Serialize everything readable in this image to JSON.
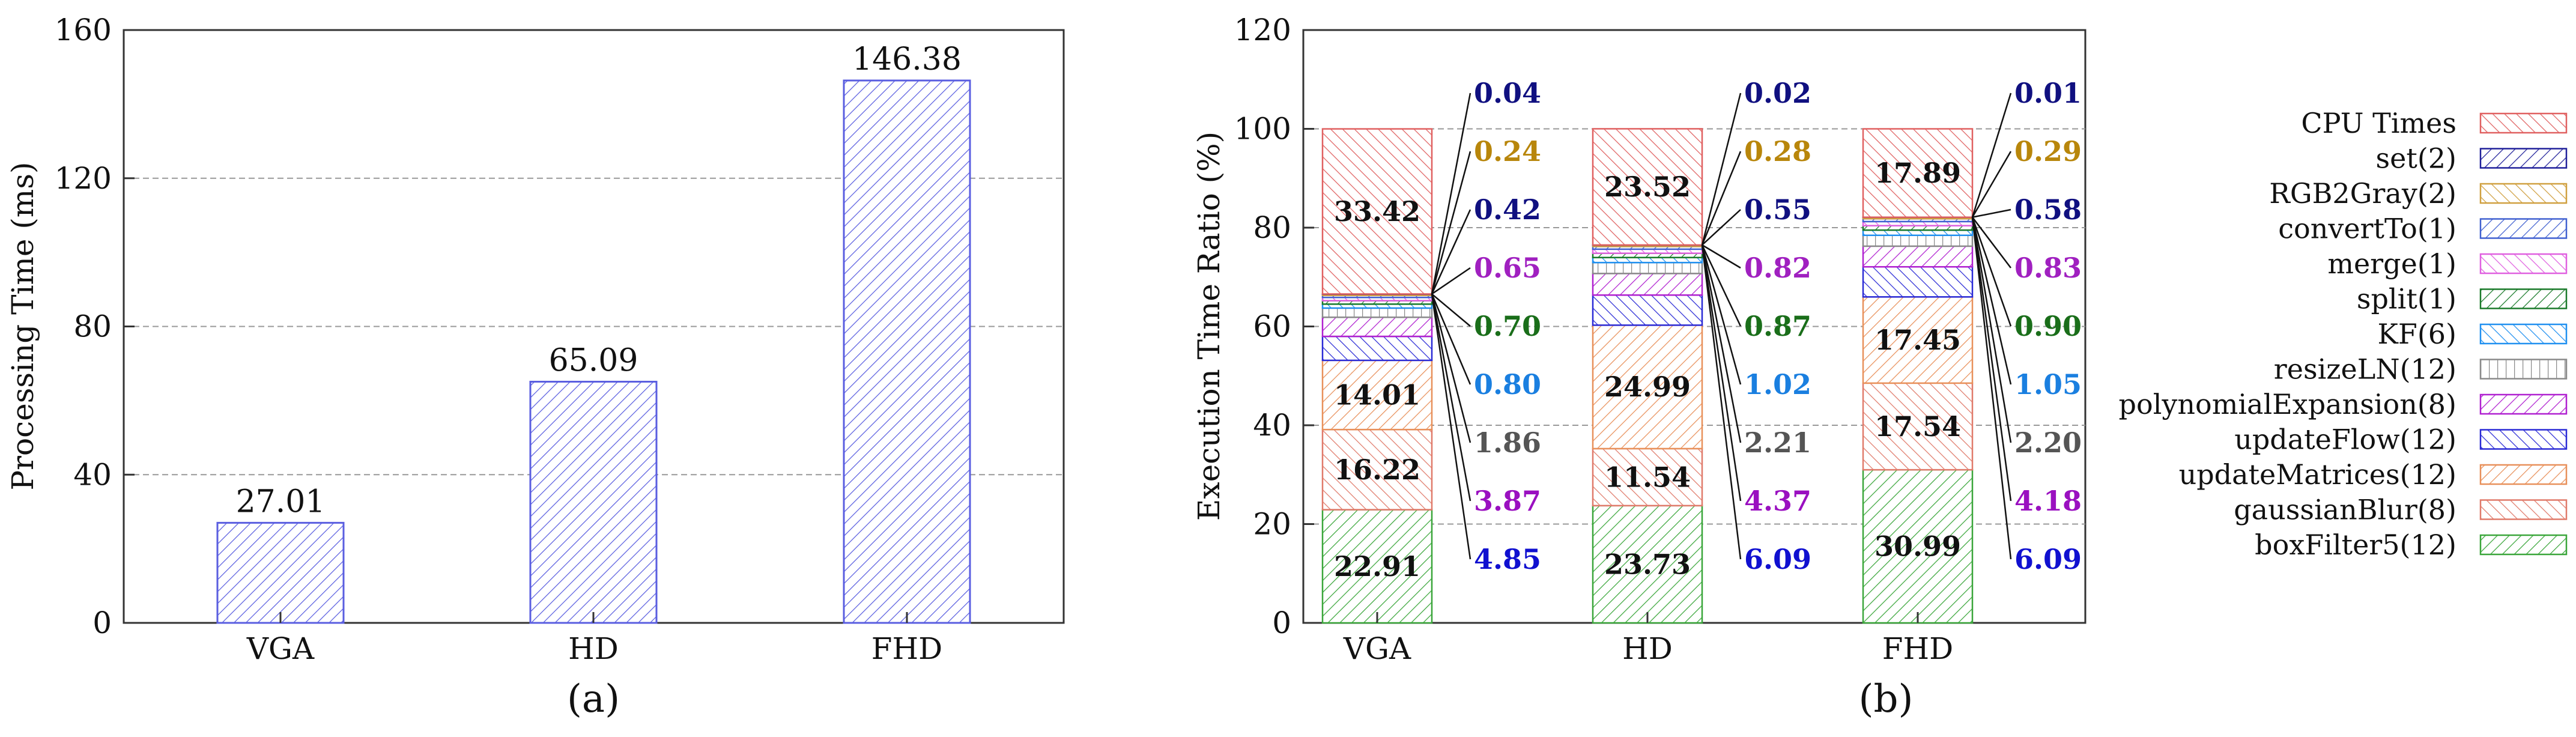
{
  "chart_data": [
    {
      "type": "bar",
      "title": "",
      "caption": "(a)",
      "xlabel": "",
      "ylabel": "Processing Time (ms)",
      "ylim": [
        0,
        160
      ],
      "yticks": [
        "0",
        "40",
        "80",
        "120",
        "160"
      ],
      "categories": [
        "VGA",
        "HD",
        "FHD"
      ],
      "values": [
        27.01,
        65.09,
        146.38
      ],
      "value_labels": [
        "27.01",
        "65.09",
        "146.38"
      ],
      "color": "#5a5ee0"
    },
    {
      "type": "bar",
      "stacked": true,
      "caption": "(b)",
      "xlabel": "",
      "ylabel": "Execution Time Ratio (%)",
      "ylim": [
        0,
        120
      ],
      "yticks": [
        "0",
        "20",
        "40",
        "60",
        "80",
        "100",
        "120"
      ],
      "categories": [
        "VGA",
        "HD",
        "FHD"
      ],
      "series": [
        {
          "name": "boxFilter5(12)",
          "color": "#3aa63a",
          "values": [
            22.91,
            23.73,
            30.99
          ],
          "labels": [
            "22.91",
            "23.73",
            "30.99"
          ]
        },
        {
          "name": "gaussianBlur(8)",
          "color": "#e07a6a",
          "values": [
            16.22,
            11.54,
            17.54
          ],
          "labels": [
            "16.22",
            "11.54",
            "17.54"
          ]
        },
        {
          "name": "updateMatrices(12)",
          "color": "#e8905a",
          "values": [
            14.01,
            24.99,
            17.45
          ],
          "labels": [
            "14.01",
            "24.99",
            "17.45"
          ]
        },
        {
          "name": "updateFlow(12)",
          "color": "#2a2ad6",
          "values": [
            4.85,
            6.09,
            6.09
          ],
          "labels": [
            "4.85",
            "6.09",
            "6.09"
          ],
          "label_color": "#1010d0"
        },
        {
          "name": "polynomialExpansion(8)",
          "color": "#b020d0",
          "values": [
            3.87,
            4.37,
            4.18
          ],
          "labels": [
            "3.87",
            "4.37",
            "4.18"
          ],
          "label_color": "#9a10c0"
        },
        {
          "name": "resizeLN(12)",
          "color": "#8a8a8a",
          "values": [
            1.86,
            2.21,
            2.2
          ],
          "labels": [
            "1.86",
            "2.21",
            "2.20"
          ],
          "label_color": "#555555"
        },
        {
          "name": "KF(6)",
          "color": "#2090f0",
          "values": [
            0.8,
            1.02,
            1.05
          ],
          "labels": [
            "0.80",
            "1.02",
            "1.05"
          ],
          "label_color": "#1a7fe0"
        },
        {
          "name": "split(1)",
          "color": "#1a7a2a",
          "values": [
            0.7,
            0.87,
            0.9
          ],
          "labels": [
            "0.70",
            "0.87",
            "0.90"
          ],
          "label_color": "#1a6e1a"
        },
        {
          "name": "merge(1)",
          "color": "#e060e0",
          "values": [
            0.65,
            0.82,
            0.83
          ],
          "labels": [
            "0.65",
            "0.82",
            "0.83"
          ],
          "label_color": "#a020c0"
        },
        {
          "name": "convertTo(1)",
          "color": "#4060d0",
          "values": [
            0.42,
            0.55,
            0.58
          ],
          "labels": [
            "0.42",
            "0.55",
            "0.58"
          ],
          "label_color": "#101080"
        },
        {
          "name": "RGB2Gray(2)",
          "color": "#d0a040",
          "values": [
            0.24,
            0.28,
            0.29
          ],
          "labels": [
            "0.24",
            "0.28",
            "0.29"
          ],
          "label_color": "#b8860b"
        },
        {
          "name": "set(2)",
          "color": "#20209a",
          "values": [
            0.04,
            0.02,
            0.01
          ],
          "labels": [
            "0.04",
            "0.02",
            "0.01"
          ],
          "label_color": "#101080"
        },
        {
          "name": "CPU Times",
          "color": "#e06060",
          "values": [
            33.42,
            23.52,
            17.89
          ],
          "labels": [
            "33.42",
            "23.52",
            "17.89"
          ]
        }
      ],
      "legend": [
        "CPU Times",
        "set(2)",
        "RGB2Gray(2)",
        "convertTo(1)",
        "merge(1)",
        "split(1)",
        "KF(6)",
        "resizeLN(12)",
        "polynomialExpansion(8)",
        "updateFlow(12)",
        "updateMatrices(12)",
        "gaussianBlur(8)",
        "boxFilter5(12)"
      ],
      "legend_position": "right"
    }
  ]
}
